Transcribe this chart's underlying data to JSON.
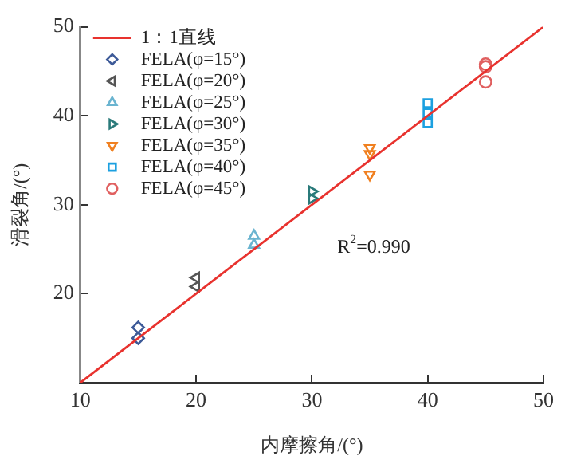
{
  "chart_data": {
    "type": "scatter",
    "xlabel": "内摩擦角/(°)",
    "ylabel": "滑裂角/(°)",
    "xlim": [
      10,
      50
    ],
    "ylim": [
      10,
      50
    ],
    "xticks": [
      10,
      20,
      30,
      40,
      50
    ],
    "yticks": [
      20,
      30,
      40,
      50
    ],
    "grid": false,
    "legend": "top left",
    "annotations": [
      "R$^{2}$=0.990"
    ],
    "series": [
      {
        "name": "1：1直线",
        "type": "line",
        "color": "#e8322e",
        "x": [
          10,
          50
        ],
        "values": [
          10,
          50
        ],
        "marker": "none",
        "line_style": "solid"
      },
      {
        "name": "FELA(φ=15°)",
        "color": "#3d5a98",
        "marker": "diamond",
        "x": [
          15,
          15
        ],
        "values": [
          15.0,
          16.2
        ]
      },
      {
        "name": "FELA(φ=20°)",
        "color": "#555555",
        "marker": "triangle-left",
        "x": [
          20,
          20
        ],
        "values": [
          20.8,
          21.8
        ]
      },
      {
        "name": "FELA(φ=25°)",
        "color": "#6ab4d0",
        "marker": "triangle",
        "x": [
          25,
          25
        ],
        "values": [
          25.5,
          26.5
        ]
      },
      {
        "name": "FELA(φ=30°)",
        "color": "#2a7a7a",
        "marker": "triangle-right",
        "x": [
          30,
          30
        ],
        "values": [
          30.7,
          31.5
        ]
      },
      {
        "name": "FELA(φ=35°)",
        "color": "#f08020",
        "marker": "triangle-down",
        "x": [
          35,
          35,
          35
        ],
        "values": [
          33.4,
          35.7,
          36.4
        ]
      },
      {
        "name": "FELA(φ=40°)",
        "color": "#1ca0e0",
        "marker": "square",
        "x": [
          40,
          40,
          40
        ],
        "values": [
          39.2,
          40.3,
          41.4
        ]
      },
      {
        "name": "FELA(φ=45°)",
        "color": "#e06060",
        "marker": "circle",
        "x": [
          45,
          45,
          45
        ],
        "values": [
          43.8,
          45.5,
          45.8
        ]
      }
    ]
  }
}
